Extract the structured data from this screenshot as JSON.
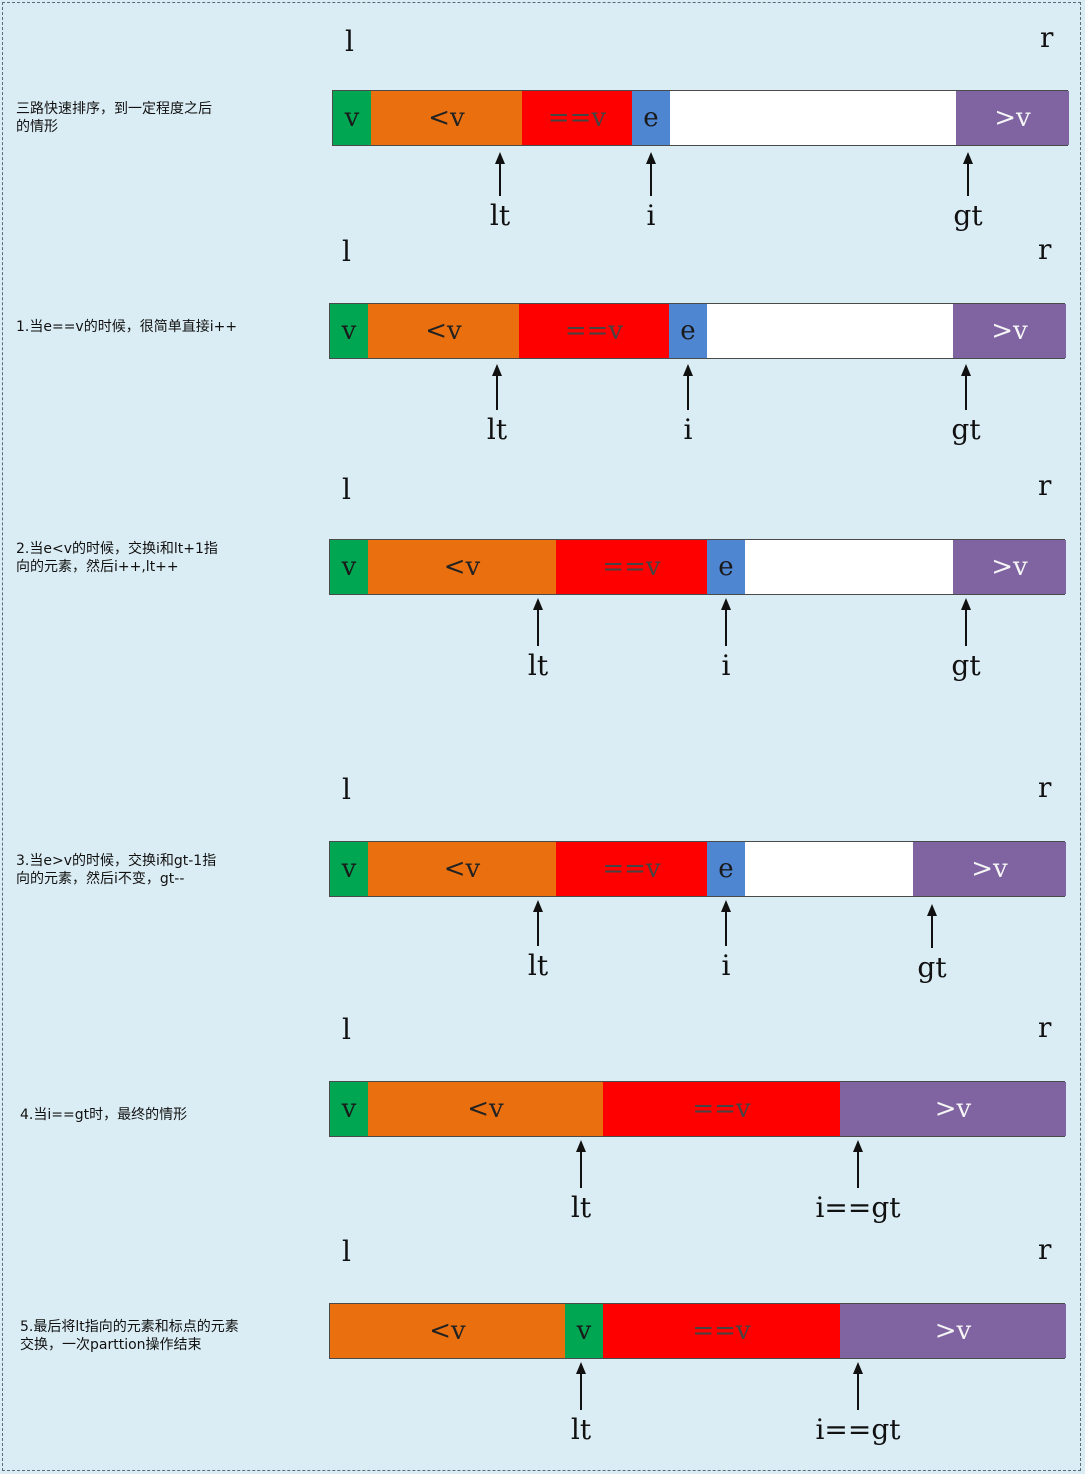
{
  "colors": {
    "background": "#dbedf4",
    "v": "#00a651",
    "less": "#ea700f",
    "equal": "#ff0000",
    "current": "#4f86d2",
    "unprocessed": "#ffffff",
    "greater": "#8064a2"
  },
  "left_marker": "l",
  "right_marker": "r",
  "steps": [
    {
      "description": [
        "三路快速排序，到一定程度之后",
        "的情形"
      ],
      "segments": [
        {
          "label": "v",
          "kind": "v"
        },
        {
          "label": "<v",
          "kind": "less"
        },
        {
          "label": "==v",
          "kind": "equal"
        },
        {
          "label": "e",
          "kind": "current"
        },
        {
          "label": "",
          "kind": "unprocessed"
        },
        {
          "label": ">v",
          "kind": "greater"
        }
      ],
      "pointers": [
        "lt",
        "i",
        "gt"
      ]
    },
    {
      "description": [
        "1.当e==v的时候，很简单直接i++"
      ],
      "segments": [
        {
          "label": "v",
          "kind": "v"
        },
        {
          "label": "<v",
          "kind": "less"
        },
        {
          "label": "==v",
          "kind": "equal"
        },
        {
          "label": "e",
          "kind": "current"
        },
        {
          "label": "",
          "kind": "unprocessed"
        },
        {
          "label": ">v",
          "kind": "greater"
        }
      ],
      "pointers": [
        "lt",
        "i",
        "gt"
      ]
    },
    {
      "description": [
        "2.当e<v的时候，交换i和lt+1指",
        "向的元素，然后i++,lt++"
      ],
      "segments": [
        {
          "label": "v",
          "kind": "v"
        },
        {
          "label": "<v",
          "kind": "less"
        },
        {
          "label": "==v",
          "kind": "equal"
        },
        {
          "label": "e",
          "kind": "current"
        },
        {
          "label": "",
          "kind": "unprocessed"
        },
        {
          "label": ">v",
          "kind": "greater"
        }
      ],
      "pointers": [
        "lt",
        "i",
        "gt"
      ]
    },
    {
      "description": [
        "3.当e>v的时候，交换i和gt-1指",
        "向的元素，然后i不变，gt--"
      ],
      "segments": [
        {
          "label": "v",
          "kind": "v"
        },
        {
          "label": "<v",
          "kind": "less"
        },
        {
          "label": "==v",
          "kind": "equal"
        },
        {
          "label": "e",
          "kind": "current"
        },
        {
          "label": "",
          "kind": "unprocessed"
        },
        {
          "label": ">v",
          "kind": "greater"
        }
      ],
      "pointers": [
        "lt",
        "i",
        "gt"
      ]
    },
    {
      "description": [
        "4.当i==gt时，最终的情形"
      ],
      "segments": [
        {
          "label": "v",
          "kind": "v"
        },
        {
          "label": "<v",
          "kind": "less"
        },
        {
          "label": "==v",
          "kind": "equal"
        },
        {
          "label": ">v",
          "kind": "greater"
        }
      ],
      "pointers": [
        "lt",
        "i==gt"
      ]
    },
    {
      "description": [
        "5.最后将lt指向的元素和标点的元素",
        "交换，一次parttion操作结束"
      ],
      "segments": [
        {
          "label": "<v",
          "kind": "less"
        },
        {
          "label": "v",
          "kind": "v"
        },
        {
          "label": "==v",
          "kind": "equal"
        },
        {
          "label": ">v",
          "kind": "greater"
        }
      ],
      "pointers": [
        "lt",
        "i==gt"
      ]
    }
  ]
}
